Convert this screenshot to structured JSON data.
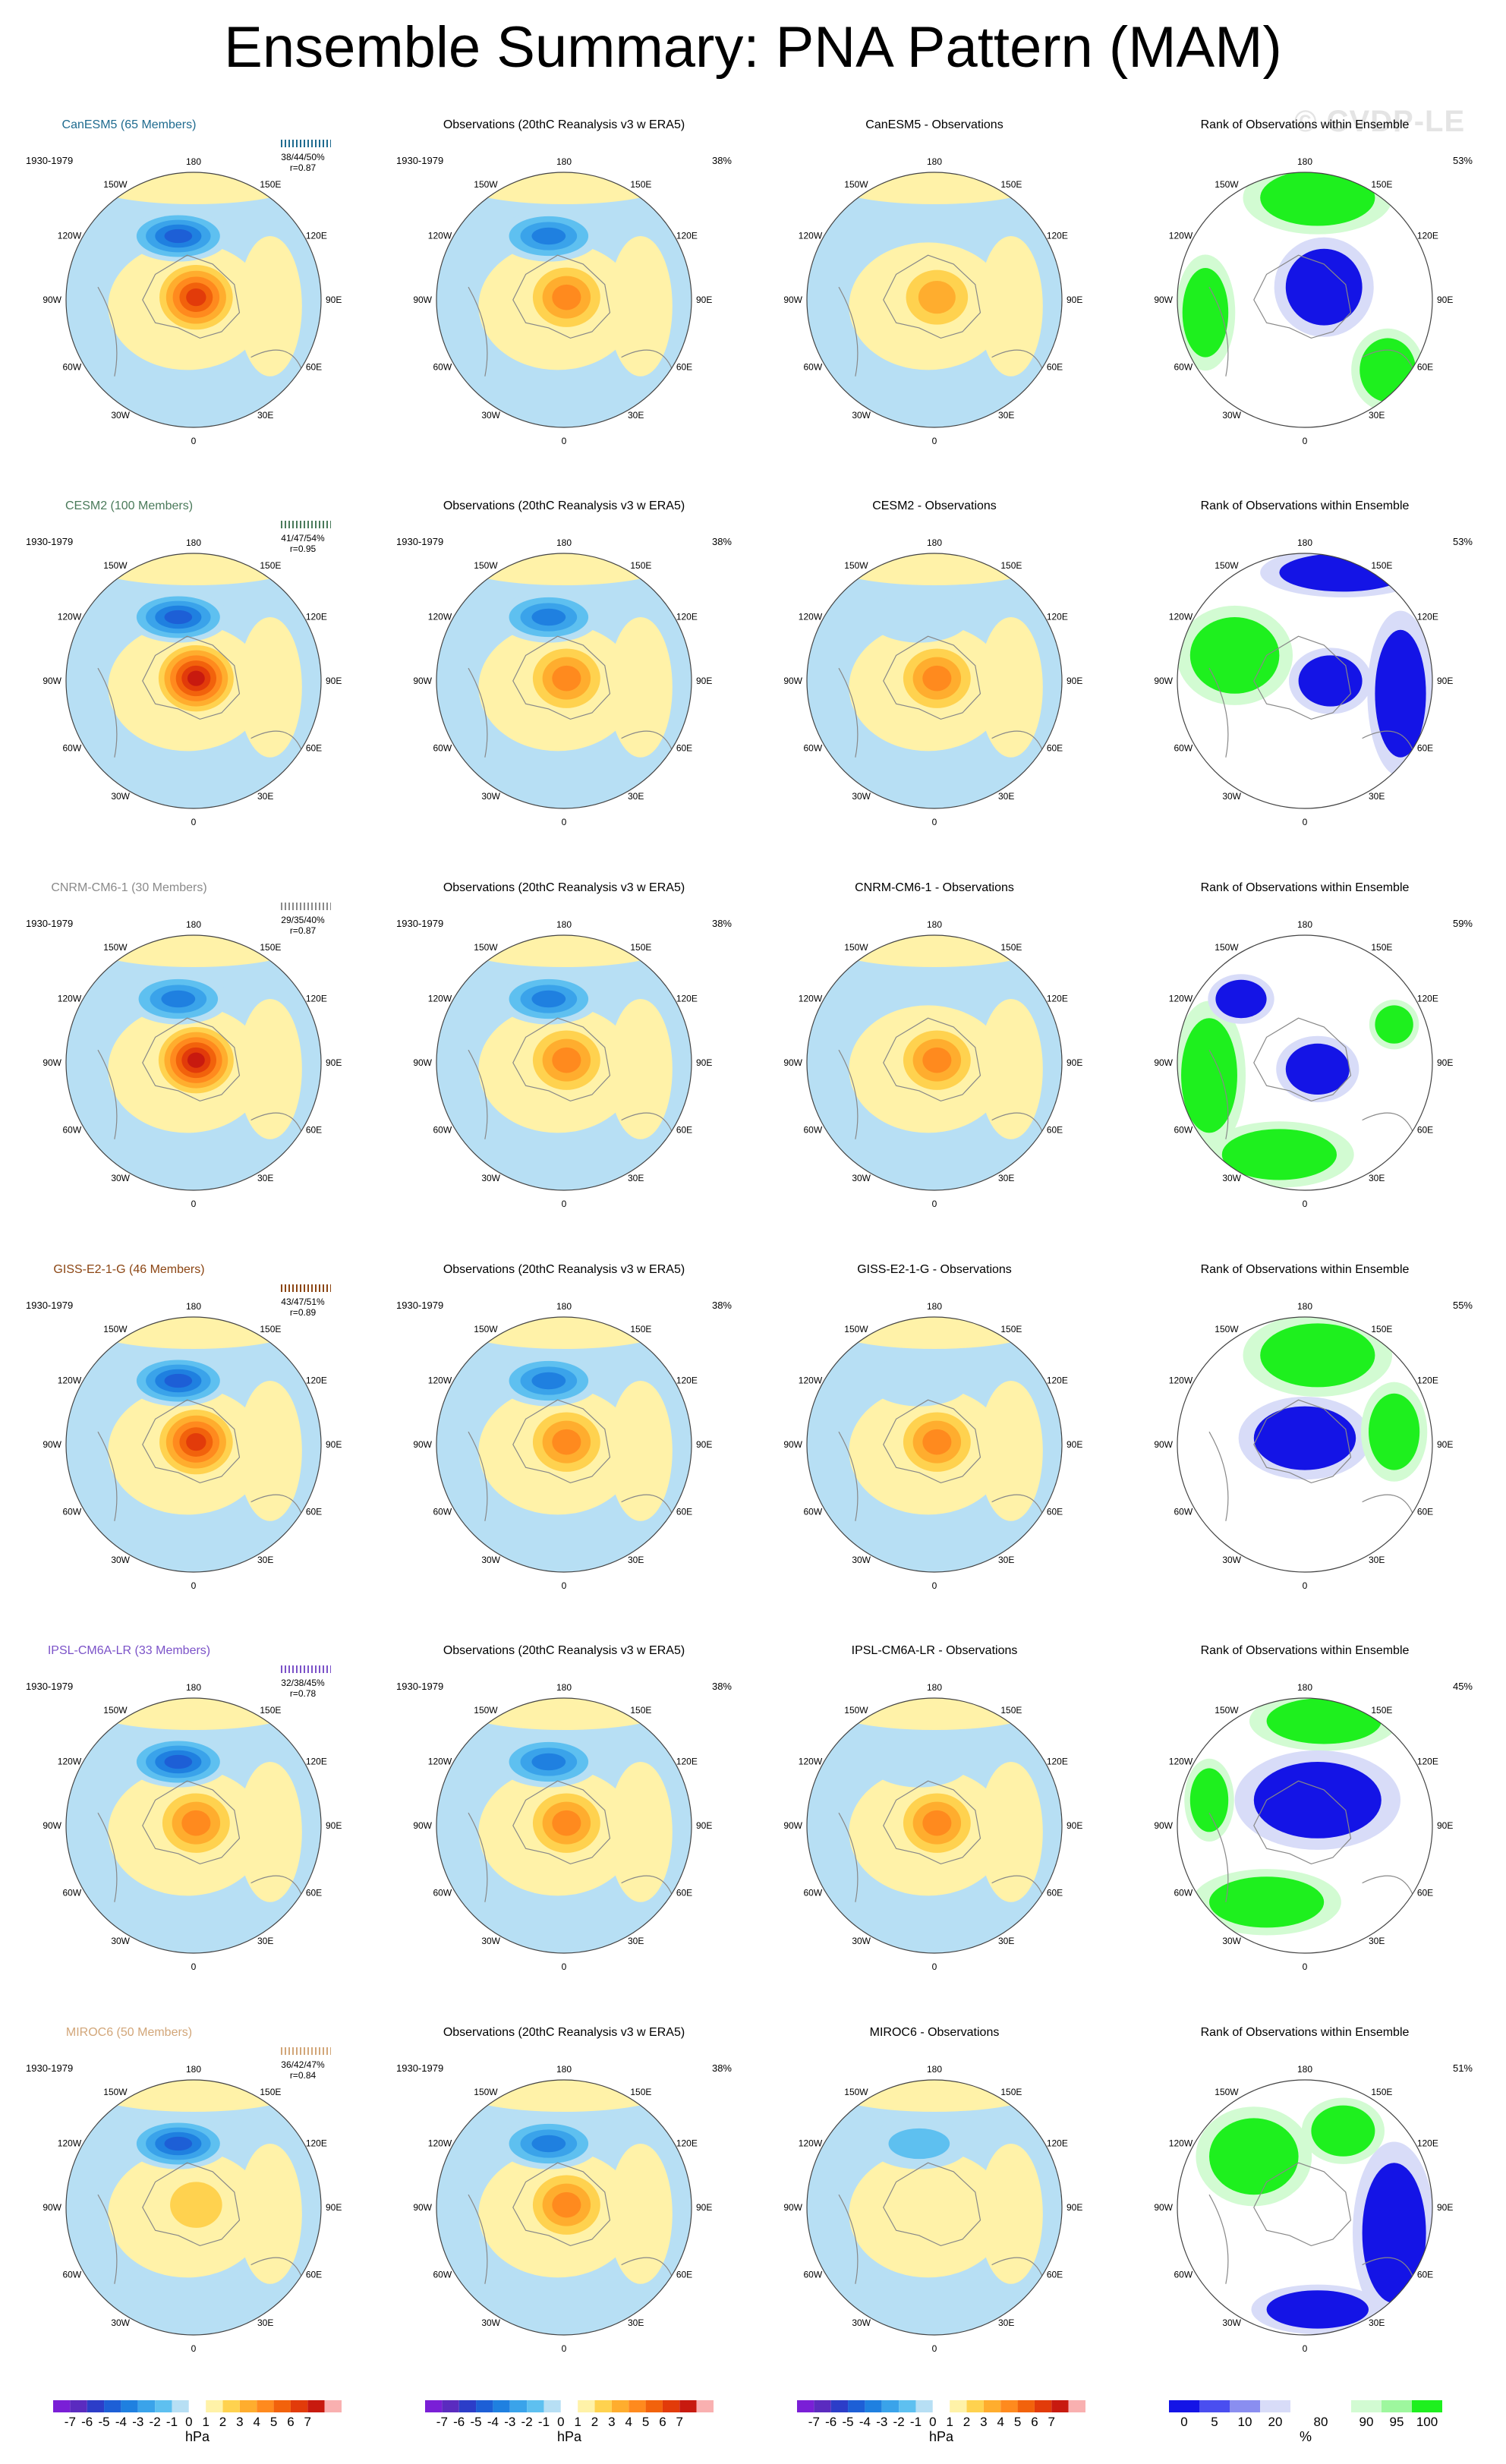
{
  "title": "Ensemble Summary: PNA Pattern (MAM)",
  "watermark": "© CVDP-LE",
  "period": "1930-1979",
  "obs_title": "Observations (20thC Reanalysis v3 w ERA5)",
  "rank_title": "Rank of Observations within Ensemble",
  "lon_labels": {
    "n": "180",
    "w150": "150W",
    "e150": "150E",
    "w120": "120W",
    "e120": "120E",
    "w90": "90W",
    "e90": "90E",
    "w60": "60W",
    "e60": "60E",
    "w30": "30W",
    "e30": "30E",
    "s": "0"
  },
  "colors": {
    "land_line": "#888888",
    "pos": [
      "#fff2a8",
      "#ffd24f",
      "#ffad2e",
      "#ff8a1e",
      "#f2620c",
      "#e23b0a",
      "#c81a0f"
    ],
    "neg": [
      "#b7dff4",
      "#5ec0f0",
      "#3aa3ea",
      "#1f80e0",
      "#1d5fd6",
      "#2c3dc8",
      "#5b2bbf"
    ],
    "rank_blue": "#1414e6",
    "rank_lblue": "#8a8ef0",
    "rank_pale": "#d8dcf8",
    "rank_green": "#1ef01e",
    "rank_lgreen": "#d2fbd2"
  },
  "chart_data": {
    "type": "heatmap",
    "field": "PNA pattern sea level pressure regression, Northern Hemisphere polar projection (MAM)",
    "units": "hPa",
    "rank_units": "%",
    "obs_pct": "38%",
    "rows": [
      {
        "model": "CanESM5 (65 Members)",
        "model_color": "#1f6b8f",
        "stats": "38/44/50%",
        "r": "r=0.87",
        "diff_title": "CanESM5 - Observations",
        "rank_pct": "53%",
        "model_max": 6,
        "model_min": -5,
        "diff_max": 3,
        "diff_min": 0,
        "rank_regions": [
          {
            "c": "green",
            "x": 0.1,
            "y": -0.8,
            "rx": 0.45,
            "ry": 0.22
          },
          {
            "c": "blue",
            "x": 0.15,
            "y": -0.1,
            "rx": 0.3,
            "ry": 0.3
          },
          {
            "c": "green",
            "x": -0.78,
            "y": 0.1,
            "rx": 0.18,
            "ry": 0.35
          },
          {
            "c": "green",
            "x": 0.65,
            "y": 0.55,
            "rx": 0.22,
            "ry": 0.25
          }
        ]
      },
      {
        "model": "CESM2 (100 Members)",
        "model_color": "#4a7a5a",
        "stats": "41/47/54%",
        "r": "r=0.95",
        "diff_title": "CESM2 - Observations",
        "rank_pct": "53%",
        "model_max": 7,
        "model_min": -5,
        "diff_max": 4,
        "diff_min": -1,
        "rank_regions": [
          {
            "c": "green",
            "x": -0.55,
            "y": -0.2,
            "rx": 0.35,
            "ry": 0.3
          },
          {
            "c": "blue",
            "x": 0.2,
            "y": 0.0,
            "rx": 0.25,
            "ry": 0.2
          },
          {
            "c": "blue",
            "x": 0.75,
            "y": 0.1,
            "rx": 0.2,
            "ry": 0.5
          },
          {
            "c": "blue",
            "x": 0.3,
            "y": -0.85,
            "rx": 0.5,
            "ry": 0.15
          }
        ]
      },
      {
        "model": "CNRM-CM6-1 (30 Members)",
        "model_color": "#8a8a8a",
        "stats": "29/35/40%",
        "r": "r=0.87",
        "diff_title": "CNRM-CM6-1 - Observations",
        "rank_pct": "59%",
        "model_max": 7,
        "model_min": -4,
        "diff_max": 4,
        "diff_min": 0,
        "rank_regions": [
          {
            "c": "green",
            "x": -0.75,
            "y": 0.1,
            "rx": 0.22,
            "ry": 0.45
          },
          {
            "c": "green",
            "x": -0.2,
            "y": 0.72,
            "rx": 0.45,
            "ry": 0.2
          },
          {
            "c": "blue",
            "x": 0.1,
            "y": 0.05,
            "rx": 0.25,
            "ry": 0.2
          },
          {
            "c": "blue",
            "x": -0.5,
            "y": -0.5,
            "rx": 0.2,
            "ry": 0.15
          },
          {
            "c": "green",
            "x": 0.7,
            "y": -0.3,
            "rx": 0.15,
            "ry": 0.15
          }
        ]
      },
      {
        "model": "GISS-E2-1-G (46 Members)",
        "model_color": "#8b4513",
        "stats": "43/47/51%",
        "r": "r=0.89",
        "diff_title": "GISS-E2-1-G - Observations",
        "rank_pct": "55%",
        "model_max": 6,
        "model_min": -5,
        "diff_max": 4,
        "diff_min": -1,
        "rank_regions": [
          {
            "c": "green",
            "x": 0.1,
            "y": -0.7,
            "rx": 0.45,
            "ry": 0.25
          },
          {
            "c": "blue",
            "x": 0.0,
            "y": -0.05,
            "rx": 0.4,
            "ry": 0.25
          },
          {
            "c": "green",
            "x": 0.7,
            "y": -0.1,
            "rx": 0.2,
            "ry": 0.3
          }
        ]
      },
      {
        "model": "IPSL-CM6A-LR (33 Members)",
        "model_color": "#7b52c8",
        "stats": "32/38/45%",
        "r": "r=0.78",
        "diff_title": "IPSL-CM6A-LR - Observations",
        "rank_pct": "45%",
        "model_max": 4,
        "model_min": -5,
        "diff_max": 4,
        "diff_min": -1,
        "rank_regions": [
          {
            "c": "green",
            "x": 0.15,
            "y": -0.82,
            "rx": 0.45,
            "ry": 0.18
          },
          {
            "c": "blue",
            "x": 0.1,
            "y": -0.2,
            "rx": 0.5,
            "ry": 0.3
          },
          {
            "c": "green",
            "x": -0.3,
            "y": 0.6,
            "rx": 0.45,
            "ry": 0.2
          },
          {
            "c": "green",
            "x": -0.75,
            "y": -0.2,
            "rx": 0.15,
            "ry": 0.25
          }
        ]
      },
      {
        "model": "MIROC6 (50 Members)",
        "model_color": "#d2a679",
        "stats": "36/42/47%",
        "r": "r=0.84",
        "diff_title": "MIROC6 - Observations",
        "rank_pct": "51%",
        "model_max": 2,
        "model_min": -5,
        "diff_max": 0,
        "diff_min": -2,
        "rank_regions": [
          {
            "c": "green",
            "x": -0.4,
            "y": -0.4,
            "rx": 0.35,
            "ry": 0.3
          },
          {
            "c": "blue",
            "x": 0.7,
            "y": 0.2,
            "rx": 0.25,
            "ry": 0.55
          },
          {
            "c": "blue",
            "x": 0.1,
            "y": 0.8,
            "rx": 0.4,
            "ry": 0.15
          },
          {
            "c": "green",
            "x": 0.3,
            "y": -0.6,
            "rx": 0.25,
            "ry": 0.2
          }
        ]
      }
    ],
    "colorbar_hpa": {
      "ticks": [
        "-7",
        "-6",
        "-5",
        "-4",
        "-3",
        "-2",
        "-1",
        "0",
        "1",
        "2",
        "3",
        "4",
        "5",
        "6",
        "7"
      ],
      "label": "hPa"
    },
    "colorbar_rank": {
      "ticks": [
        "0",
        "5",
        "10",
        "20",
        "80",
        "90",
        "95",
        "100"
      ],
      "label": "%"
    }
  }
}
